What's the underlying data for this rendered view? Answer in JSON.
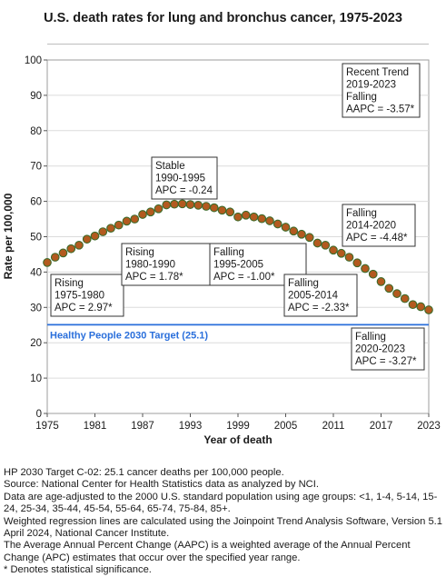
{
  "chart_data": {
    "type": "scatter",
    "title": "U.S. death rates for lung and bronchus cancer, 1975-2023",
    "xlabel": "Year of death",
    "ylabel": "Rate per 100,000",
    "xlim": [
      1975,
      2023
    ],
    "ylim": [
      0,
      100
    ],
    "x_ticks": [
      "1975",
      "1981",
      "1987",
      "1993",
      "1999",
      "2005",
      "2011",
      "2017",
      "2023"
    ],
    "y_ticks": [
      "0",
      "10",
      "20",
      "30",
      "40",
      "50",
      "60",
      "70",
      "80",
      "90",
      "100"
    ],
    "grid": true,
    "marker_color": "#b35a1f",
    "marker_edge_color": "#3d6b2a",
    "target_line": {
      "label": "Healthy People 2030 Target (25.1)",
      "value": 25.1,
      "color": "#2a6fdb"
    },
    "x": [
      1975,
      1976,
      1977,
      1978,
      1979,
      1980,
      1981,
      1982,
      1983,
      1984,
      1985,
      1986,
      1987,
      1988,
      1989,
      1990,
      1991,
      1992,
      1993,
      1994,
      1995,
      1996,
      1997,
      1998,
      1999,
      2000,
      2001,
      2002,
      2003,
      2004,
      2005,
      2006,
      2007,
      2008,
      2009,
      2010,
      2011,
      2012,
      2013,
      2014,
      2015,
      2016,
      2017,
      2018,
      2019,
      2020,
      2021,
      2022,
      2023
    ],
    "y": [
      42.7,
      44.2,
      45.4,
      46.6,
      47.6,
      49.3,
      50.2,
      51.4,
      52.4,
      53.3,
      54.4,
      55.0,
      56.3,
      57.0,
      57.9,
      59.0,
      59.2,
      59.3,
      59.1,
      58.9,
      58.6,
      58.2,
      57.5,
      57.0,
      55.6,
      56.1,
      55.6,
      55.1,
      54.5,
      53.6,
      52.7,
      51.6,
      50.7,
      49.8,
      48.2,
      47.6,
      46.2,
      45.3,
      44.2,
      42.6,
      41.0,
      39.4,
      37.3,
      35.4,
      33.9,
      32.5,
      30.8,
      30.2,
      29.3
    ],
    "annotations": [
      {
        "lines": [
          "Rising",
          "1975-1980",
          "APC =  2.97*"
        ]
      },
      {
        "lines": [
          "Rising",
          "1980-1990",
          "APC =  1.78*"
        ]
      },
      {
        "lines": [
          "Stable",
          "1990-1995",
          "APC = -0.24"
        ]
      },
      {
        "lines": [
          "Falling",
          "1995-2005",
          "APC = -1.00*"
        ]
      },
      {
        "lines": [
          "Falling",
          "2005-2014",
          "APC = -2.33*"
        ]
      },
      {
        "lines": [
          "Falling",
          "2014-2020",
          "APC = -4.48*"
        ]
      },
      {
        "lines": [
          "Falling",
          "2020-2023",
          "APC = -3.27*"
        ]
      },
      {
        "lines": [
          "Recent Trend",
          "2019-2023",
          "Falling",
          "AAPC = -3.57*"
        ]
      }
    ]
  },
  "notes": [
    "HP 2030 Target C-02: 25.1 cancer deaths per 100,000 people.",
    "Source: National Center for Health Statistics data as analyzed by NCI.",
    "Data are age-adjusted to the 2000 U.S. standard population using age groups: <1, 1-4, 5-14, 15-24, 25-34, 35-44, 45-54, 55-64, 65-74, 75-84, 85+.",
    "Weighted regression lines are calculated using the Joinpoint Trend Analysis Software, Version 5.1 April 2024, National Cancer Institute.",
    "The Average Annual Percent Change (AAPC) is a weighted average of the Annual Percent Change (APC) estimates that occur over the specified year range.",
    "* Denotes statistical significance."
  ]
}
